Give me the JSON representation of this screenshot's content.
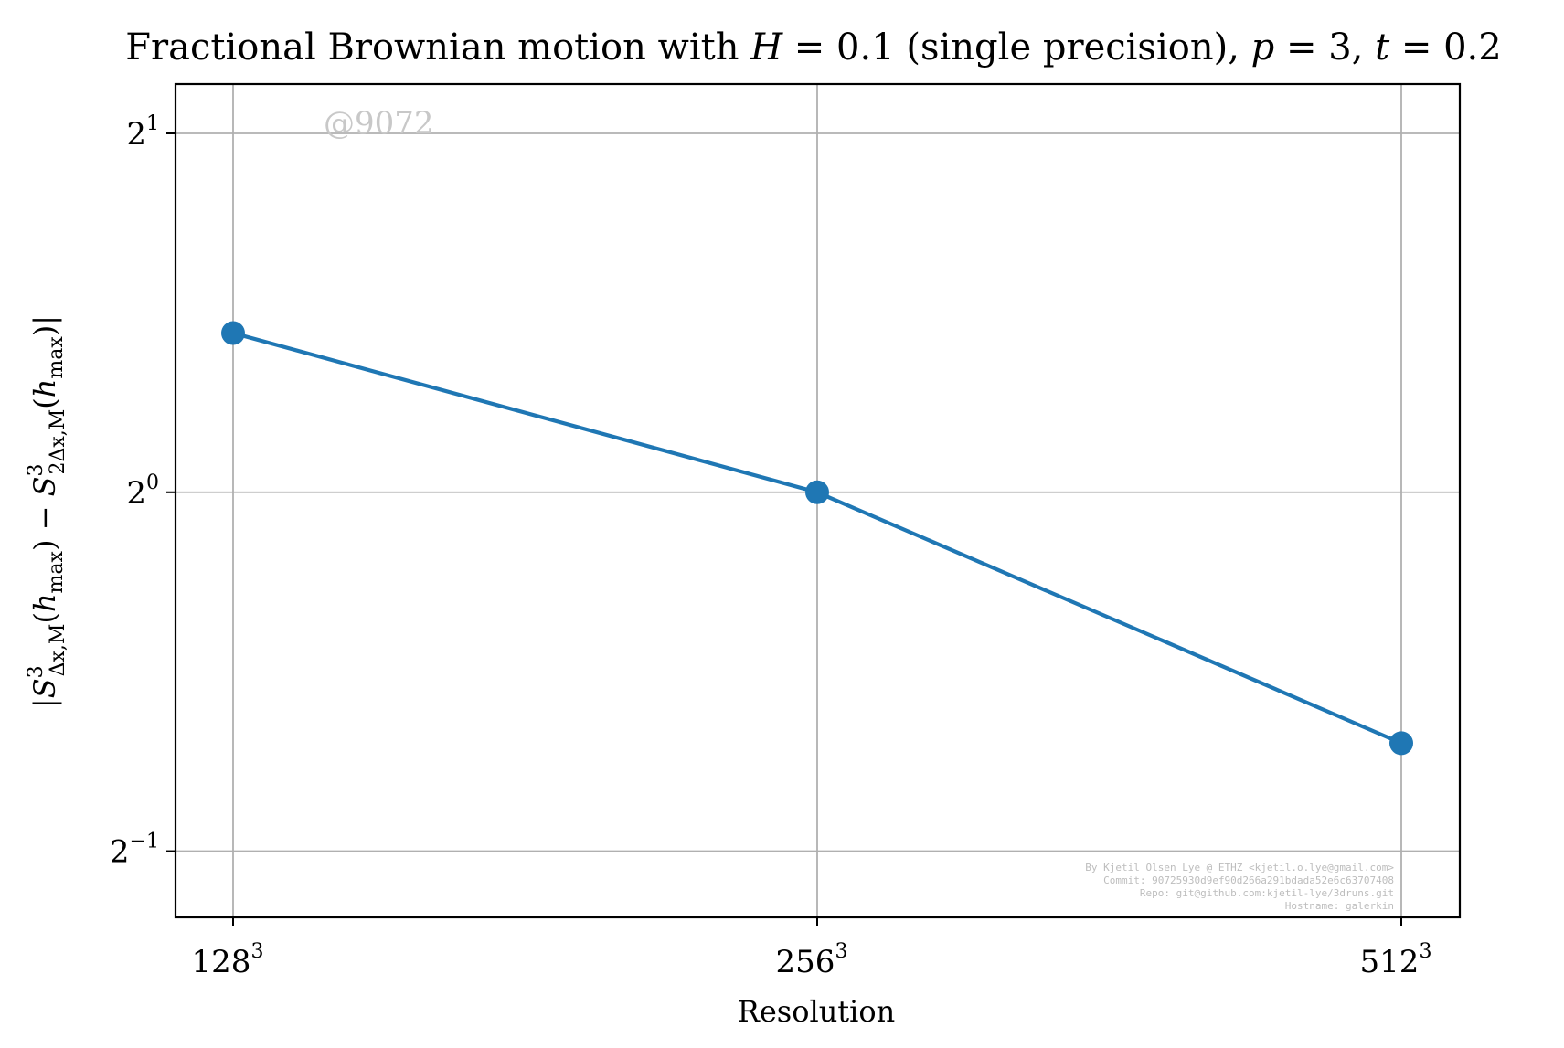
{
  "chart_data": {
    "type": "line",
    "title": "Fractional Brownian motion with H = 0.1 (single precision), p = 3, t = 0.2",
    "xlabel": "Resolution",
    "ylabel": "|S³_{Δx,M}(h_max) − S³_{2Δx,M}(h_max)|",
    "x_scale": "log2",
    "y_scale": "log2",
    "categories": [
      "128³",
      "256³",
      "512³"
    ],
    "x": [
      128,
      256,
      512
    ],
    "series": [
      {
        "values": [
          1.36,
          1.0,
          0.616
        ],
        "color": "#1f77b4",
        "marker": "circle"
      }
    ],
    "ylim": [
      0.44,
      2.2
    ],
    "yticks": [
      {
        "value": 0.5,
        "base": "2",
        "exp": "−1"
      },
      {
        "value": 1,
        "base": "2",
        "exp": "0"
      },
      {
        "value": 2,
        "base": "2",
        "exp": "1"
      }
    ],
    "xticks": [
      {
        "value": 128,
        "base": "128",
        "exp": "3"
      },
      {
        "value": 256,
        "base": "256",
        "exp": "3"
      },
      {
        "value": 512,
        "base": "512",
        "exp": "3"
      }
    ],
    "grid": true,
    "watermark": "@9072",
    "credits": [
      "By Kjetil Olsen Lye @ ETHZ <kjetil.o.lye@gmail.com>",
      "Commit: 90725930d9ef90d266a291bdada52e6c63707408",
      "Repo: git@github.com:kjetil-lye/3druns.git",
      "Hostname: galerkin"
    ]
  }
}
